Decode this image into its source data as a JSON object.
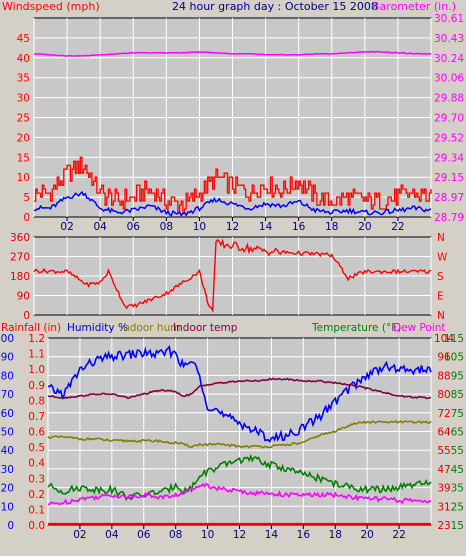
{
  "header": {
    "title": "24 hour graph day : October 15 2008",
    "left_label": "Windspeed (mph)",
    "right_label": "Barometer (in.)"
  },
  "colors": {
    "background": "#d4d0c8",
    "plot_bg": "#c8c8c8",
    "grid": "#ffffff",
    "red": "#ff0000",
    "dark_red": "#e00000",
    "magenta": "#ff00ff",
    "blue": "#0000ff",
    "navy": "#0000cc",
    "olive": "#808000",
    "maroon": "#800040",
    "green": "#008000",
    "darkblue_text": "#000080"
  },
  "x_hours": [
    "02",
    "04",
    "06",
    "08",
    "10",
    "12",
    "14",
    "16",
    "18",
    "20",
    "22"
  ],
  "panel_wind": {
    "left_ticks": [
      "45",
      "40",
      "35",
      "30",
      "25",
      "20",
      "15",
      "10",
      "5",
      "0"
    ],
    "right_ticks": [
      "30.61",
      "30.43",
      "30.24",
      "30.06",
      "29.88",
      "29.70",
      "29.52",
      "29.34",
      "29.15",
      "28.97",
      "28.79"
    ]
  },
  "panel_dir": {
    "left_ticks": [
      "360",
      "270",
      "180",
      "90",
      "0"
    ],
    "right_ticks": [
      "N",
      "W",
      "S",
      "E",
      "N"
    ]
  },
  "panel_env": {
    "labels": {
      "rainfall": "Rainfall (in)",
      "humidity": "Humidity %",
      "indoor_hum": "Indoor hum",
      "indoor_temp": "Indoor temp",
      "temperature": "Temperature (°F)",
      "dew_point": "Dew Point"
    },
    "humidity_ticks": [
      "100",
      "90",
      "80",
      "70",
      "60",
      "50",
      "40",
      "30",
      "20",
      "10",
      "0"
    ],
    "rain_ticks": [
      "1.2",
      "1.1",
      "1.0",
      "0.9",
      "0.8",
      "0.7",
      "0.6",
      "0.5",
      "0.4",
      "0.3",
      "0.2",
      "0.1",
      "0.0"
    ],
    "temp_ticks": [
      "104",
      "96",
      "88",
      "80",
      "72",
      "64",
      "55",
      "47",
      "39",
      "31",
      "23"
    ],
    "temp_ticks2": [
      "115",
      "105",
      "95",
      "85",
      "75",
      "65",
      "55",
      "45",
      "35",
      "25",
      "15"
    ]
  },
  "chart_data": [
    {
      "type": "line",
      "x": [
        0,
        1,
        2,
        3,
        4,
        5,
        6,
        7,
        8,
        9,
        10,
        11,
        12,
        13,
        14,
        15,
        16,
        17,
        18,
        19,
        20,
        21,
        22,
        23,
        24
      ],
      "series": [
        {
          "name": "Windspeed (mph)",
          "values": [
            4,
            4,
            9,
            11,
            4,
            2,
            3,
            5,
            2,
            1,
            4,
            8,
            6,
            4,
            6,
            5,
            7,
            3,
            2,
            3,
            2,
            2,
            3,
            4,
            3
          ]
        },
        {
          "name": "Barometer (in.)",
          "values": [
            30.43,
            30.42,
            30.41,
            30.41,
            30.42,
            30.43,
            30.44,
            30.44,
            30.44,
            30.44,
            30.45,
            30.44,
            30.43,
            30.43,
            30.42,
            30.42,
            30.42,
            30.43,
            30.43,
            30.44,
            30.45,
            30.45,
            30.44,
            30.43,
            30.43
          ]
        }
      ],
      "ylim": [
        0,
        50
      ],
      "y2lim": [
        28.79,
        30.79
      ]
    },
    {
      "type": "line",
      "x": [
        0,
        2,
        3.2,
        4,
        4.5,
        5.5,
        6,
        8,
        9,
        10,
        10.5,
        10.8,
        11,
        12,
        14,
        15,
        16,
        17.5,
        18,
        19,
        20,
        22,
        23.5
      ],
      "series": [
        {
          "name": "Wind Direction",
          "values": [
            205,
            200,
            140,
            150,
            200,
            40,
            40,
            100,
            150,
            200,
            60,
            20,
            330,
            320,
            295,
            290,
            285,
            280,
            275,
            170,
            200,
            200,
            200
          ]
        }
      ],
      "ylim": [
        0,
        360
      ]
    },
    {
      "type": "line",
      "x": [
        0,
        1,
        2,
        3,
        4,
        5,
        6,
        7,
        7.5,
        8,
        8.5,
        9,
        9.5,
        10,
        10.5,
        11,
        12,
        13,
        14,
        15,
        16,
        17,
        18,
        19,
        20,
        21,
        22,
        23.5
      ],
      "series": [
        {
          "name": "Humidity %",
          "values": [
            73,
            70,
            83,
            88,
            90,
            91,
            92,
            91,
            93,
            92,
            84,
            88,
            80,
            64,
            62,
            58,
            55,
            50,
            46,
            48,
            52,
            58,
            66,
            74,
            80,
            85,
            83,
            83
          ]
        },
        {
          "name": "Indoor hum",
          "values": [
            47,
            47,
            46,
            46,
            45,
            45,
            45,
            45,
            44,
            44,
            43,
            42,
            43,
            43,
            43,
            43,
            42,
            42,
            42,
            43,
            44,
            48,
            50,
            54,
            55,
            55,
            55,
            55
          ]
        },
        {
          "name": "Indoor temp",
          "values": [
            69,
            68,
            69,
            70,
            70,
            68,
            70,
            72,
            72,
            71,
            69,
            70,
            74,
            75,
            76,
            76,
            77,
            77,
            78,
            78,
            77,
            77,
            76,
            75,
            73,
            71,
            69,
            68
          ]
        },
        {
          "name": "Temperature (°F)",
          "values": [
            21,
            18,
            20,
            19,
            19,
            15,
            16,
            18,
            18,
            22,
            18,
            20,
            26,
            29,
            30,
            32,
            35,
            35,
            32,
            30,
            27,
            25,
            22,
            20,
            19,
            19,
            20,
            22
          ]
        },
        {
          "name": "Dew Point",
          "values": [
            11,
            12,
            14,
            15,
            16,
            15,
            16,
            15,
            15,
            16,
            17,
            19,
            22,
            21,
            20,
            19,
            18,
            17,
            17,
            16,
            16,
            16,
            16,
            15,
            14,
            14,
            13,
            13
          ]
        },
        {
          "name": "Rainfall (in)",
          "values": [
            0,
            0,
            0,
            0,
            0,
            0,
            0,
            0,
            0,
            0,
            0,
            0,
            0,
            0,
            0,
            0,
            0,
            0,
            0,
            0,
            0,
            0,
            0,
            0,
            0,
            0,
            0,
            0
          ]
        }
      ],
      "ylim": [
        0,
        100
      ]
    }
  ]
}
